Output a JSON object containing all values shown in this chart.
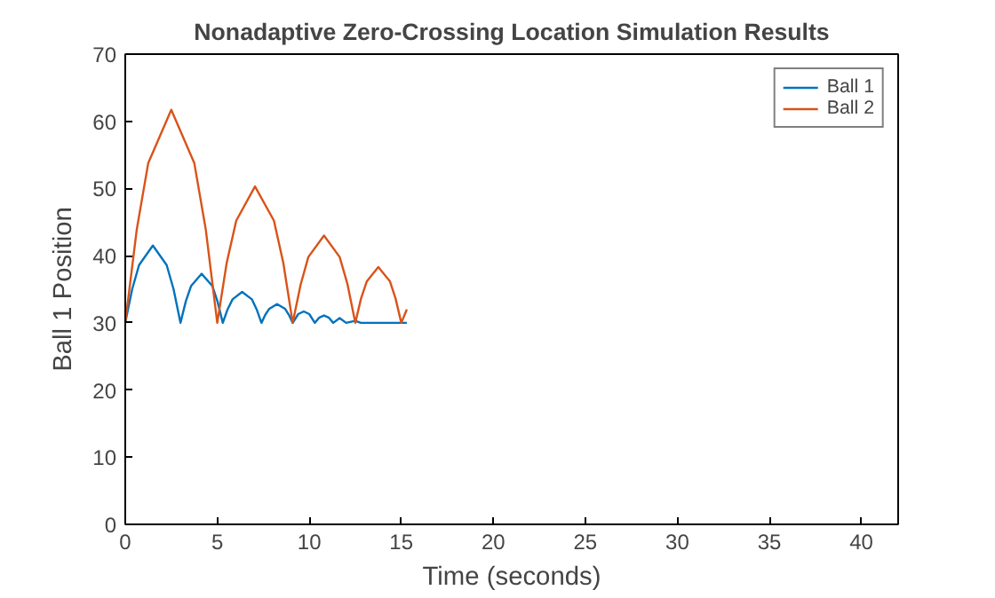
{
  "chart_data": {
    "type": "line",
    "title": "Nonadaptive Zero-Crossing Location Simulation Results",
    "xlabel": "Time (seconds)",
    "ylabel": "Ball 1 Position",
    "xlim": [
      0,
      42
    ],
    "ylim": [
      0,
      70
    ],
    "xticks": [
      0,
      5,
      10,
      15,
      20,
      25,
      30,
      35,
      40
    ],
    "yticks": [
      0,
      10,
      20,
      30,
      40,
      50,
      60,
      70
    ],
    "grid": false,
    "legend": "top right",
    "marker": "none",
    "line_style": "solid",
    "series": [
      {
        "name": "Ball 1",
        "color": "#0072bd",
        "x": [
          0,
          0.375,
          0.75,
          1.5,
          2.25,
          2.625,
          3.0,
          3.29,
          3.58,
          4.15,
          4.73,
          5.01,
          5.3,
          5.56,
          5.83,
          6.35,
          6.88,
          7.14,
          7.4,
          7.61,
          7.83,
          8.25,
          8.68,
          8.89,
          9.1,
          9.4,
          9.7,
          10.0,
          10.3,
          10.55,
          10.8,
          11.05,
          11.3,
          11.65,
          12.0,
          12.5,
          12.8,
          15.3
        ],
        "values": [
          30,
          35.0,
          38.6,
          41.5,
          38.6,
          35.0,
          30,
          33.2,
          35.5,
          37.3,
          35.5,
          33.2,
          30,
          32.0,
          33.5,
          34.6,
          33.5,
          32.0,
          30,
          31.2,
          32.1,
          32.8,
          32.1,
          31.2,
          30,
          31.3,
          31.7,
          31.3,
          30,
          30.8,
          31.1,
          30.8,
          30,
          30.7,
          30,
          30.3,
          30,
          30
        ]
      },
      {
        "name": "Ball 2",
        "color": "#d95319",
        "x": [
          0,
          0.625,
          1.25,
          2.5,
          3.75,
          4.375,
          5.0,
          5.51,
          6.03,
          7.05,
          8.08,
          8.59,
          9.1,
          9.53,
          9.95,
          10.8,
          11.65,
          12.08,
          12.5,
          12.81,
          13.13,
          13.75,
          14.38,
          14.69,
          15.0,
          15.3
        ],
        "values": [
          30,
          43.9,
          53.8,
          61.7,
          53.8,
          43.9,
          30,
          38.9,
          45.2,
          50.3,
          45.2,
          38.9,
          30,
          35.7,
          39.8,
          43,
          39.8,
          35.7,
          30,
          33.6,
          36.2,
          38.3,
          36.2,
          33.6,
          30,
          32
        ]
      }
    ]
  }
}
